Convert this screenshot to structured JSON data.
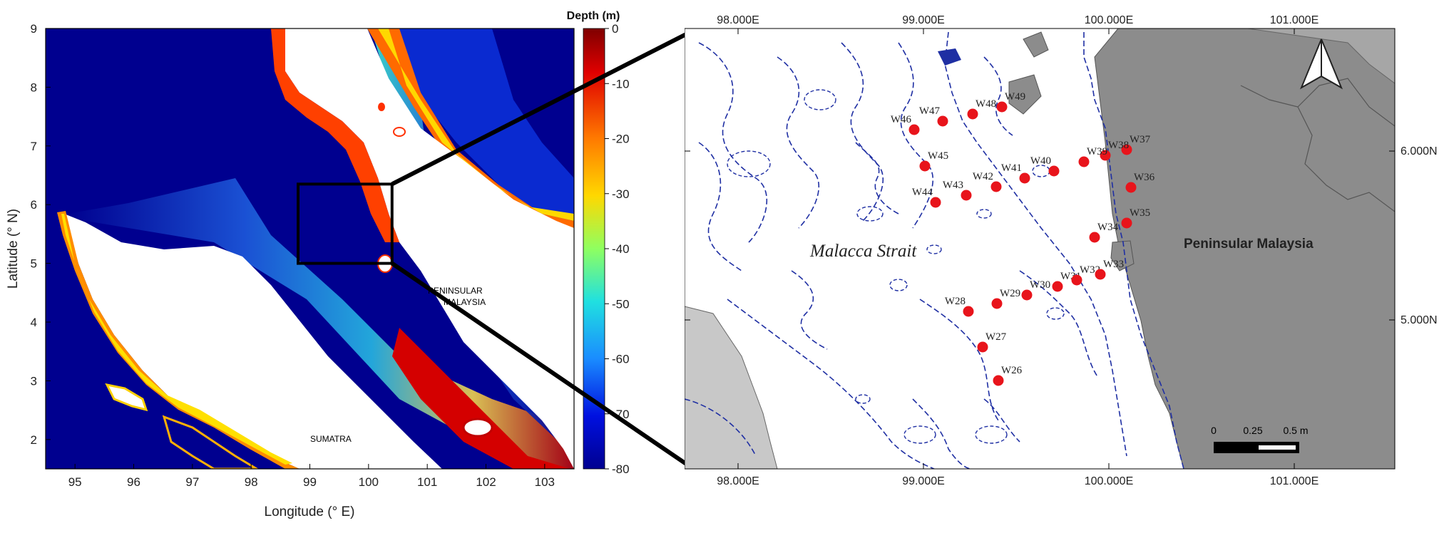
{
  "left_map": {
    "xlabel": "Longitude (° E)",
    "ylabel": "Latitude (° N)",
    "x_ticks": [
      "95",
      "96",
      "97",
      "98",
      "99",
      "100",
      "101",
      "102",
      "103"
    ],
    "y_ticks": [
      "2",
      "3",
      "4",
      "5",
      "6",
      "7",
      "8",
      "9"
    ],
    "xlim": [
      94.5,
      103.5
    ],
    "ylim": [
      1.5,
      9
    ],
    "labels": {
      "sumatra": "SUMATRA",
      "peninsular_1": "PENINSULAR",
      "peninsular_2": "MALAYSIA"
    },
    "colorbar": {
      "title": "Depth (m)",
      "ticks": [
        "0",
        "-10",
        "-20",
        "-30",
        "-40",
        "-50",
        "-60",
        "-70",
        "-80"
      ],
      "range": [
        -80,
        0
      ]
    },
    "inset_box": {
      "lon": [
        98.8,
        100.4
      ],
      "lat": [
        5.0,
        6.35
      ]
    }
  },
  "right_map": {
    "top_ticks": [
      "98.000E",
      "99.000E",
      "100.000E",
      "101.000E"
    ],
    "bottom_ticks": [
      "98.000E",
      "99.000E",
      "100.000E",
      "101.000E"
    ],
    "left_ticks": [
      "6.000N",
      "5.000N"
    ],
    "right_ticks": [
      "6.000N",
      "5.000N"
    ],
    "labels": {
      "strait": "Malacca Strait",
      "peninsula": "Peninsular Malaysia"
    },
    "scale_bar": {
      "ticks": [
        "0",
        "0.25",
        "0.5 m"
      ]
    },
    "north_arrow": "north-arrow-icon",
    "stations": [
      {
        "id": "W26"
      },
      {
        "id": "W27"
      },
      {
        "id": "W28"
      },
      {
        "id": "W29"
      },
      {
        "id": "W30"
      },
      {
        "id": "W31"
      },
      {
        "id": "W32"
      },
      {
        "id": "W33"
      },
      {
        "id": "W34"
      },
      {
        "id": "W35"
      },
      {
        "id": "W36"
      },
      {
        "id": "W37"
      },
      {
        "id": "W38"
      },
      {
        "id": "W39"
      },
      {
        "id": "W40"
      },
      {
        "id": "W41"
      },
      {
        "id": "W42"
      },
      {
        "id": "W43"
      },
      {
        "id": "W44"
      },
      {
        "id": "W45"
      },
      {
        "id": "W46"
      },
      {
        "id": "W47"
      },
      {
        "id": "W48"
      },
      {
        "id": "W49"
      }
    ]
  },
  "colors": {
    "station": "#e8141b",
    "land_dark": "#8c8c8c",
    "land_light": "#c8c8c8",
    "contour": "#1f2fa3",
    "deep": "#00008f"
  }
}
